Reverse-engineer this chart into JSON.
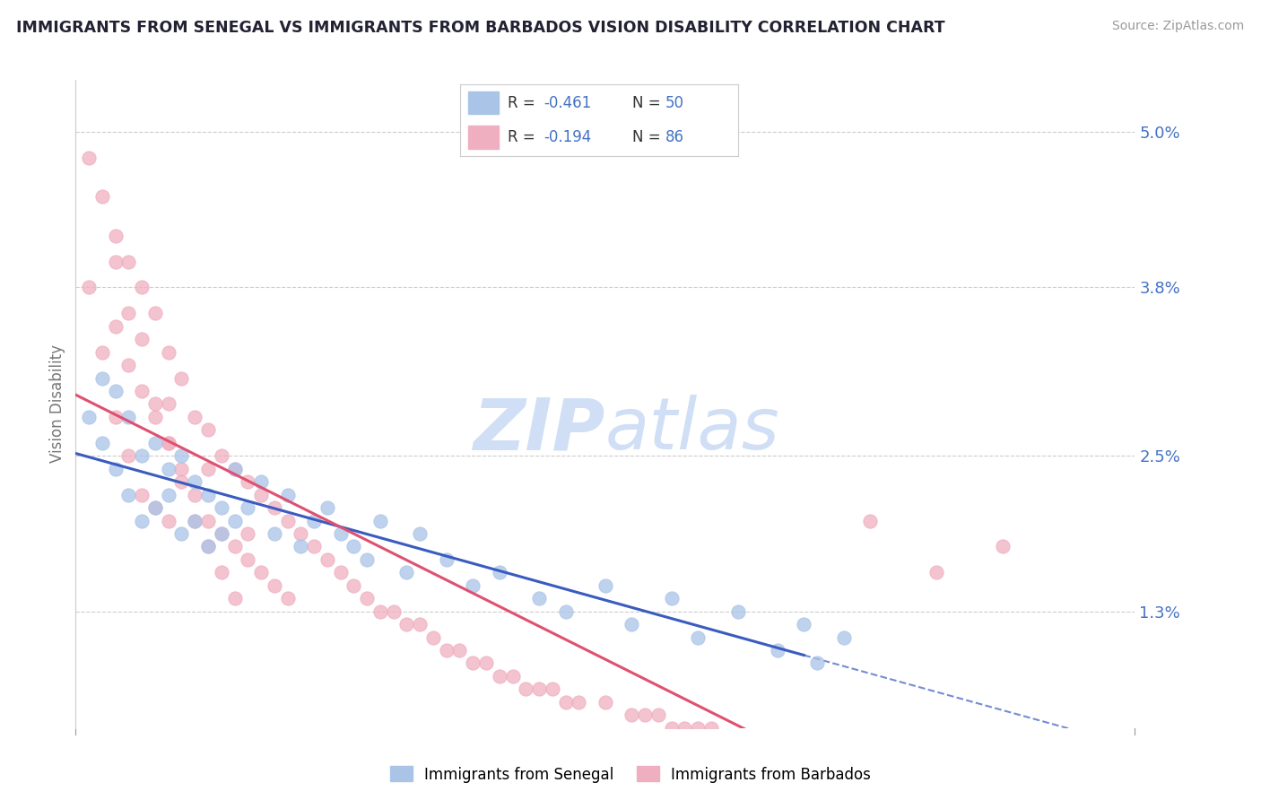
{
  "title": "IMMIGRANTS FROM SENEGAL VS IMMIGRANTS FROM BARBADOS VISION DISABILITY CORRELATION CHART",
  "source": "Source: ZipAtlas.com",
  "ylabel": "Vision Disability",
  "yticks": [
    0.013,
    0.025,
    0.038,
    0.05
  ],
  "ytick_labels": [
    "1.3%",
    "2.5%",
    "3.8%",
    "5.0%"
  ],
  "xlim": [
    0.0,
    0.08
  ],
  "ylim": [
    0.004,
    0.054
  ],
  "legend_label_blue": "Immigrants from Senegal",
  "legend_label_pink": "Immigrants from Barbados",
  "color_blue": "#aac4e8",
  "color_pink": "#f0afc0",
  "color_blue_line": "#3a5bbf",
  "color_pink_line": "#e05070",
  "color_dashed_line": "#7aaae0",
  "watermark_color": "#d0dff5",
  "background_color": "#ffffff",
  "grid_color": "#cccccc",
  "title_color": "#222233",
  "axis_label_color": "#4472c4",
  "senegal_x": [
    0.001,
    0.002,
    0.002,
    0.003,
    0.003,
    0.004,
    0.004,
    0.005,
    0.005,
    0.006,
    0.006,
    0.007,
    0.007,
    0.008,
    0.008,
    0.009,
    0.009,
    0.01,
    0.01,
    0.011,
    0.011,
    0.012,
    0.012,
    0.013,
    0.014,
    0.015,
    0.016,
    0.017,
    0.018,
    0.019,
    0.02,
    0.021,
    0.022,
    0.023,
    0.025,
    0.026,
    0.028,
    0.03,
    0.032,
    0.035,
    0.037,
    0.04,
    0.042,
    0.045,
    0.047,
    0.05,
    0.053,
    0.055,
    0.056,
    0.058
  ],
  "senegal_y": [
    0.028,
    0.031,
    0.026,
    0.03,
    0.024,
    0.028,
    0.022,
    0.025,
    0.02,
    0.026,
    0.021,
    0.024,
    0.022,
    0.025,
    0.019,
    0.023,
    0.02,
    0.022,
    0.018,
    0.021,
    0.019,
    0.02,
    0.024,
    0.021,
    0.023,
    0.019,
    0.022,
    0.018,
    0.02,
    0.021,
    0.019,
    0.018,
    0.017,
    0.02,
    0.016,
    0.019,
    0.017,
    0.015,
    0.016,
    0.014,
    0.013,
    0.015,
    0.012,
    0.014,
    0.011,
    0.013,
    0.01,
    0.012,
    0.009,
    0.011
  ],
  "barbados_x": [
    0.001,
    0.001,
    0.002,
    0.002,
    0.003,
    0.003,
    0.003,
    0.004,
    0.004,
    0.004,
    0.005,
    0.005,
    0.005,
    0.006,
    0.006,
    0.006,
    0.007,
    0.007,
    0.007,
    0.008,
    0.008,
    0.009,
    0.009,
    0.01,
    0.01,
    0.011,
    0.011,
    0.012,
    0.012,
    0.013,
    0.013,
    0.014,
    0.014,
    0.015,
    0.015,
    0.016,
    0.016,
    0.017,
    0.018,
    0.019,
    0.02,
    0.021,
    0.022,
    0.023,
    0.024,
    0.025,
    0.026,
    0.027,
    0.028,
    0.029,
    0.03,
    0.031,
    0.032,
    0.033,
    0.034,
    0.035,
    0.036,
    0.037,
    0.038,
    0.04,
    0.042,
    0.043,
    0.044,
    0.045,
    0.046,
    0.047,
    0.048,
    0.05,
    0.052,
    0.054,
    0.004,
    0.005,
    0.006,
    0.007,
    0.008,
    0.009,
    0.01,
    0.011,
    0.012,
    0.06,
    0.003,
    0.007,
    0.01,
    0.013,
    0.07,
    0.065
  ],
  "barbados_y": [
    0.048,
    0.038,
    0.045,
    0.033,
    0.042,
    0.035,
    0.028,
    0.04,
    0.032,
    0.025,
    0.038,
    0.03,
    0.022,
    0.036,
    0.028,
    0.021,
    0.033,
    0.026,
    0.02,
    0.031,
    0.024,
    0.028,
    0.022,
    0.027,
    0.02,
    0.025,
    0.019,
    0.024,
    0.018,
    0.023,
    0.017,
    0.022,
    0.016,
    0.021,
    0.015,
    0.02,
    0.014,
    0.019,
    0.018,
    0.017,
    0.016,
    0.015,
    0.014,
    0.013,
    0.013,
    0.012,
    0.012,
    0.011,
    0.01,
    0.01,
    0.009,
    0.009,
    0.008,
    0.008,
    0.007,
    0.007,
    0.007,
    0.006,
    0.006,
    0.006,
    0.005,
    0.005,
    0.005,
    0.004,
    0.004,
    0.004,
    0.004,
    0.003,
    0.003,
    0.003,
    0.036,
    0.034,
    0.029,
    0.026,
    0.023,
    0.02,
    0.018,
    0.016,
    0.014,
    0.02,
    0.04,
    0.029,
    0.024,
    0.019,
    0.018,
    0.016
  ]
}
